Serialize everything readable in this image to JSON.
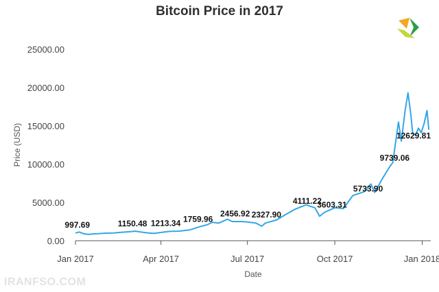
{
  "chart_data": {
    "type": "line",
    "title": "Bitcoin Price in 2017",
    "xlabel": "Date",
    "ylabel": "Price (USD)",
    "ylim": [
      0,
      25000
    ],
    "xlim": [
      "2017-01-01",
      "2018-01-10"
    ],
    "grid": false,
    "line_color": "#33a6e6",
    "yticks": [
      "0.00",
      "5000.00",
      "10000.00",
      "15000.00",
      "20000.00",
      "25000.00"
    ],
    "xticks": [
      {
        "date": "2017-01-01",
        "label": "Jan 2017"
      },
      {
        "date": "2017-04-01",
        "label": "Apr 2017"
      },
      {
        "date": "2017-07-01",
        "label": "Jul 2017"
      },
      {
        "date": "2017-10-01",
        "label": "Oct 2017"
      },
      {
        "date": "2018-01-01",
        "label": "Jan 2018"
      }
    ],
    "x": [
      "2017-01-01",
      "2017-01-05",
      "2017-01-10",
      "2017-01-15",
      "2017-01-20",
      "2017-01-25",
      "2017-02-01",
      "2017-02-10",
      "2017-02-20",
      "2017-03-01",
      "2017-03-05",
      "2017-03-10",
      "2017-03-18",
      "2017-03-25",
      "2017-04-01",
      "2017-04-10",
      "2017-04-20",
      "2017-05-01",
      "2017-05-10",
      "2017-05-20",
      "2017-05-25",
      "2017-06-01",
      "2017-06-10",
      "2017-06-15",
      "2017-06-25",
      "2017-07-01",
      "2017-07-10",
      "2017-07-16",
      "2017-07-20",
      "2017-08-01",
      "2017-08-10",
      "2017-08-20",
      "2017-09-01",
      "2017-09-05",
      "2017-09-10",
      "2017-09-15",
      "2017-09-20",
      "2017-10-01",
      "2017-10-10",
      "2017-10-20",
      "2017-11-01",
      "2017-11-08",
      "2017-11-12",
      "2017-11-20",
      "2017-11-28",
      "2017-12-01",
      "2017-12-07",
      "2017-12-10",
      "2017-12-14",
      "2017-12-17",
      "2017-12-20",
      "2017-12-22",
      "2017-12-25",
      "2017-12-28",
      "2017-12-31",
      "2018-01-03",
      "2018-01-06",
      "2018-01-08"
    ],
    "values": [
      997.69,
      1130,
      900,
      820,
      890,
      920,
      980,
      1000,
      1120,
      1200,
      1250,
      1150,
      1020,
      960,
      1080,
      1210,
      1250,
      1400,
      1760,
      2100,
      2400,
      2300,
      2800,
      2500,
      2500,
      2450,
      2300,
      1900,
      2300,
      2720,
      3400,
      4100,
      4700,
      4500,
      4300,
      3200,
      3700,
      4300,
      4200,
      5900,
      6400,
      7400,
      6300,
      8100,
      9700,
      10200,
      15500,
      13000,
      17000,
      19300,
      16500,
      14000,
      13800,
      14700,
      14100,
      15300,
      17000,
      14500
    ],
    "data_labels": [
      {
        "date": "2017-01-03",
        "value": 997.69,
        "text": "997.69"
      },
      {
        "date": "2017-03-02",
        "value": 1150.48,
        "text": "1150.48"
      },
      {
        "date": "2017-04-06",
        "value": 1213.34,
        "text": "1213.34"
      },
      {
        "date": "2017-05-10",
        "value": 1759.96,
        "text": "1759.96"
      },
      {
        "date": "2017-06-18",
        "value": 2456.92,
        "text": "2456.92"
      },
      {
        "date": "2017-07-21",
        "value": 2327.9,
        "text": "2327.90"
      },
      {
        "date": "2017-09-02",
        "value": 4111.22,
        "text": "4111.22"
      },
      {
        "date": "2017-09-28",
        "value": 3603.31,
        "text": "3603.31"
      },
      {
        "date": "2017-11-05",
        "value": 5733.9,
        "text": "5733.90"
      },
      {
        "date": "2017-12-03",
        "value": 9739.06,
        "text": "9739.06"
      },
      {
        "date": "2018-01-01",
        "value": 12629.81,
        "text": "12629.81"
      }
    ]
  },
  "watermark_text": "IRANFSO.COM",
  "logo": {
    "icon": "chevron-logo-icon",
    "colors": [
      "#f5a623",
      "#2e9d4a",
      "#c6d63a"
    ]
  }
}
